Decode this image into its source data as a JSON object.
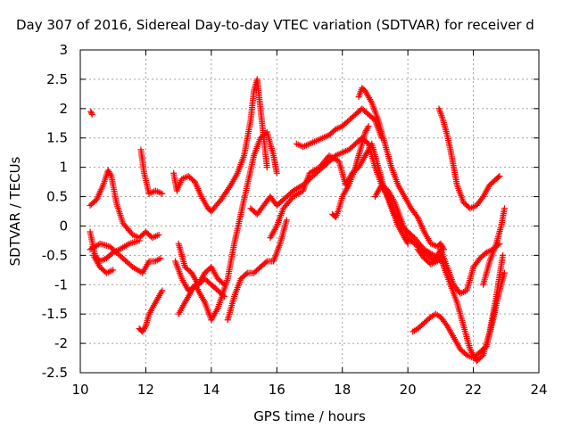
{
  "chart_data": {
    "type": "scatter",
    "title": "Day 307 of 2016, Sidereal Day-to-day VTEC variation (SDTVAR) for receiver d",
    "xlabel": "GPS time / hours",
    "ylabel": "SDTVAR / TECUs",
    "xlim": [
      10,
      24
    ],
    "ylim": [
      -2.5,
      3
    ],
    "x_ticks": [
      10,
      12,
      14,
      16,
      18,
      20,
      22,
      24
    ],
    "x_tick_labels": [
      "10",
      "12",
      "14",
      "16",
      "18",
      "20",
      "22",
      "24"
    ],
    "y_ticks": [
      -2.5,
      -2,
      -1.5,
      -1,
      -0.5,
      0,
      0.5,
      1,
      1.5,
      2,
      2.5,
      3
    ],
    "y_tick_labels": [
      "-2.5",
      "-2",
      "-1.5",
      "-1",
      "-0.5",
      "0",
      "0.5",
      "1",
      "1.5",
      "2",
      "2.5",
      "3"
    ],
    "grid": true,
    "marker": "+",
    "marker_color": "#ff0000",
    "series": [
      {
        "x": [
          10.3,
          10.5,
          10.7,
          10.85,
          10.95,
          11.1,
          11.3,
          11.6,
          11.8,
          12.0,
          12.2,
          12.4
        ],
        "y": [
          0.35,
          0.45,
          0.7,
          0.95,
          0.85,
          0.4,
          0.05,
          -0.15,
          -0.2,
          -0.1,
          -0.2,
          -0.15
        ]
      },
      {
        "x": [
          10.3,
          10.6,
          10.9,
          11.2,
          11.6,
          11.9,
          12.1,
          12.3,
          12.45
        ],
        "y": [
          -0.4,
          -0.3,
          -0.35,
          -0.5,
          -0.7,
          -0.8,
          -0.6,
          -0.6,
          -0.55
        ]
      },
      {
        "x": [
          10.3,
          10.45,
          10.6,
          10.8,
          11.0,
          11.2,
          11.5,
          11.8
        ],
        "y": [
          -0.1,
          -0.5,
          -0.6,
          -0.55,
          -0.45,
          -0.4,
          -0.3,
          -0.25
        ]
      },
      {
        "x": [
          10.4,
          10.6,
          10.8,
          11.0
        ],
        "y": [
          -0.5,
          -0.7,
          -0.8,
          -0.75
        ]
      },
      {
        "x": [
          10.32,
          10.36
        ],
        "y": [
          1.95,
          1.9
        ]
      },
      {
        "x": [
          11.8,
          11.9,
          12.0,
          12.1,
          12.3,
          12.5
        ],
        "y": [
          -1.75,
          -1.8,
          -1.7,
          -1.5,
          -1.3,
          -1.1
        ]
      },
      {
        "x": [
          11.85,
          11.95,
          12.1,
          12.3,
          12.5
        ],
        "y": [
          1.3,
          0.9,
          0.55,
          0.6,
          0.55
        ]
      },
      {
        "x": [
          12.85,
          12.95,
          13.1,
          13.3,
          13.5,
          13.7,
          13.9,
          14.0,
          14.3,
          14.6,
          14.8,
          15.0,
          15.2,
          15.3,
          15.4,
          15.5,
          15.6,
          15.7
        ],
        "y": [
          0.9,
          0.6,
          0.8,
          0.85,
          0.75,
          0.5,
          0.3,
          0.25,
          0.45,
          0.7,
          0.9,
          1.2,
          1.8,
          2.3,
          2.5,
          2.0,
          1.5,
          1.0
        ]
      },
      {
        "x": [
          12.9,
          13.1,
          13.3,
          13.6,
          13.8,
          14.0,
          14.2,
          14.4
        ],
        "y": [
          -0.6,
          -0.9,
          -1.1,
          -1.0,
          -0.9,
          -1.0,
          -1.1,
          -1.2
        ]
      },
      {
        "x": [
          13.0,
          13.2,
          13.5,
          13.8,
          14.0,
          14.2,
          14.5,
          14.7,
          14.9,
          15.1,
          15.3,
          15.5,
          15.7,
          15.9,
          16.0
        ],
        "y": [
          -1.5,
          -1.3,
          -1.0,
          -1.3,
          -1.6,
          -1.4,
          -0.9,
          -0.3,
          0.2,
          0.7,
          1.2,
          1.5,
          1.6,
          1.2,
          0.9
        ]
      },
      {
        "x": [
          13.0,
          13.2,
          13.4,
          13.6,
          13.8,
          14.0,
          14.2,
          14.4
        ],
        "y": [
          -0.3,
          -0.7,
          -0.8,
          -1.0,
          -0.8,
          -0.7,
          -0.9,
          -1.0
        ]
      },
      {
        "x": [
          14.5,
          14.7,
          14.9,
          15.1,
          15.3,
          15.5,
          15.7,
          15.9,
          16.1,
          16.3
        ],
        "y": [
          -1.6,
          -1.2,
          -0.9,
          -0.8,
          -0.8,
          -0.7,
          -0.6,
          -0.6,
          -0.3,
          0.1
        ]
      },
      {
        "x": [
          15.2,
          15.4,
          15.6,
          15.8,
          16.0,
          16.2,
          16.5,
          16.8,
          17.1,
          17.4,
          17.6,
          17.8,
          18.0,
          18.2,
          18.4,
          18.6,
          18.8,
          19.0,
          19.2,
          19.4,
          19.6,
          19.8,
          20.0,
          20.2,
          20.5,
          20.8,
          21.0
        ],
        "y": [
          0.3,
          0.2,
          0.35,
          0.5,
          0.35,
          0.45,
          0.6,
          0.7,
          0.85,
          1.0,
          1.1,
          1.2,
          1.25,
          1.3,
          1.4,
          1.5,
          1.4,
          1.0,
          0.7,
          0.5,
          0.2,
          0.0,
          -0.1,
          -0.2,
          -0.4,
          -0.5,
          -0.6
        ]
      },
      {
        "x": [
          15.8,
          16.0,
          16.2,
          16.5,
          16.8,
          17.0,
          17.3,
          17.6,
          17.9,
          18.1,
          18.3,
          18.5,
          18.7,
          18.9,
          19.1,
          19.3,
          19.5,
          19.7,
          19.9,
          20.0
        ],
        "y": [
          -0.2,
          0.0,
          0.3,
          0.5,
          0.6,
          0.9,
          1.0,
          1.2,
          1.1,
          0.7,
          0.9,
          1.0,
          1.2,
          1.4,
          1.0,
          0.6,
          0.3,
          0.0,
          -0.2,
          -0.3
        ]
      },
      {
        "x": [
          16.6,
          16.8,
          17.0,
          17.2,
          17.4,
          17.6,
          17.8,
          18.0,
          18.2,
          18.4,
          18.6,
          18.8,
          19.0,
          19.2
        ],
        "y": [
          1.4,
          1.35,
          1.4,
          1.45,
          1.5,
          1.55,
          1.65,
          1.7,
          1.8,
          1.9,
          2.0,
          1.9,
          1.8,
          1.5
        ]
      },
      {
        "x": [
          17.7,
          17.8,
          17.9,
          18.0,
          18.2,
          18.4,
          18.5,
          18.6,
          18.7,
          18.8
        ],
        "y": [
          0.2,
          0.15,
          0.3,
          0.5,
          0.7,
          1.0,
          1.2,
          1.4,
          1.6,
          1.7
        ]
      },
      {
        "x": [
          18.5,
          18.6,
          18.7,
          18.9,
          19.1,
          19.3,
          19.5,
          19.7,
          19.9,
          20.1,
          20.3,
          20.5,
          20.7,
          20.9,
          21.0,
          21.1
        ],
        "y": [
          2.2,
          2.35,
          2.3,
          2.1,
          1.8,
          1.4,
          1.0,
          0.7,
          0.5,
          0.3,
          0.15,
          -0.1,
          -0.3,
          -0.35,
          -0.3,
          -0.4
        ]
      },
      {
        "x": [
          19.0,
          19.2,
          19.4,
          19.6,
          19.8,
          20.0,
          20.2,
          20.4,
          20.6,
          20.8,
          21.0,
          21.2,
          21.4,
          21.6,
          21.8,
          21.9,
          22.0,
          22.2,
          22.4,
          22.6,
          22.8
        ],
        "y": [
          0.5,
          0.7,
          0.6,
          0.4,
          0.1,
          -0.2,
          -0.3,
          -0.4,
          -0.5,
          -0.6,
          -0.4,
          -0.7,
          -1.0,
          -1.15,
          -1.1,
          -0.9,
          -0.7,
          -0.55,
          -0.45,
          -0.4,
          -0.3
        ]
      },
      {
        "x": [
          20.3,
          20.5,
          20.7,
          20.9,
          21.0,
          21.1,
          21.3,
          21.5,
          21.7,
          21.9,
          22.1,
          22.3,
          22.5,
          22.7,
          22.9
        ],
        "y": [
          -0.4,
          -0.55,
          -0.65,
          -0.6,
          -0.5,
          -0.7,
          -1.0,
          -1.3,
          -1.7,
          -2.1,
          -2.3,
          -2.2,
          -1.8,
          -1.2,
          -0.5
        ]
      },
      {
        "x": [
          20.15,
          20.3,
          20.5,
          20.7,
          20.85,
          21.0,
          21.2,
          21.4,
          21.6,
          21.8,
          22.0,
          22.2,
          22.4,
          22.6,
          22.8,
          22.95
        ],
        "y": [
          -1.8,
          -1.75,
          -1.65,
          -1.55,
          -1.5,
          -1.55,
          -1.7,
          -1.9,
          -2.1,
          -2.2,
          -2.25,
          -2.15,
          -2.05,
          -1.6,
          -1.1,
          -0.8
        ]
      },
      {
        "x": [
          20.95,
          21.05,
          21.2,
          21.3,
          21.4,
          21.5,
          21.7,
          21.9,
          22.1,
          22.3,
          22.5,
          22.7,
          22.8
        ],
        "y": [
          2.0,
          1.85,
          1.55,
          1.3,
          1.0,
          0.7,
          0.4,
          0.3,
          0.35,
          0.5,
          0.7,
          0.8,
          0.85
        ]
      },
      {
        "x": [
          22.3,
          22.5,
          22.7,
          22.85,
          22.95
        ],
        "y": [
          -1.0,
          -0.6,
          -0.3,
          0.0,
          0.3
        ]
      }
    ]
  }
}
